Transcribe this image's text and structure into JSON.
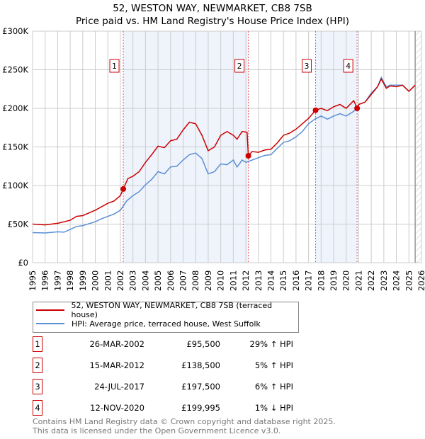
{
  "chart_data": {
    "type": "line",
    "title": "52, WESTON WAY, NEWMARKET, CB8 7SB",
    "subtitle": "Price paid vs. HM Land Registry's House Price Index (HPI)",
    "xlim": [
      1995,
      2026
    ],
    "ylim": [
      0,
      300000
    ],
    "x_ticks": [
      "1995",
      "1996",
      "1997",
      "1998",
      "1999",
      "2000",
      "2001",
      "2002",
      "2003",
      "2004",
      "2005",
      "2006",
      "2007",
      "2008",
      "2009",
      "2010",
      "2011",
      "2012",
      "2013",
      "2014",
      "2015",
      "2016",
      "2017",
      "2018",
      "2019",
      "2020",
      "2021",
      "2022",
      "2023",
      "2024",
      "2025",
      "2026"
    ],
    "y_ticks": [
      {
        "v": 0,
        "label": "£0"
      },
      {
        "v": 50000,
        "label": "£50K"
      },
      {
        "v": 100000,
        "label": "£100K"
      },
      {
        "v": 150000,
        "label": "£150K"
      },
      {
        "v": 200000,
        "label": "£200K"
      },
      {
        "v": 250000,
        "label": "£250K"
      },
      {
        "v": 300000,
        "label": "£300K"
      }
    ],
    "grid": true,
    "shaded_ranges": [
      [
        2002.23,
        2012.2
      ],
      [
        2017.56,
        2020.87
      ]
    ],
    "forecast_from": 2025.5,
    "series": [
      {
        "name": "52, WESTON WAY, NEWMARKET, CB8 7SB (terraced house)",
        "color": "#cc0000",
        "x": [
          1995,
          1996,
          1997,
          1998,
          1998.5,
          1999,
          2000,
          2001,
          2001.5,
          2002,
          2002.23,
          2002.6,
          2003,
          2003.5,
          2004,
          2004.5,
          2005,
          2005.5,
          2006,
          2006.5,
          2007,
          2007.5,
          2008,
          2008.5,
          2009,
          2009.5,
          2010,
          2010.5,
          2011,
          2011.3,
          2011.7,
          2012.1,
          2012.2,
          2012.5,
          2013,
          2013.5,
          2014,
          2014.5,
          2015,
          2015.5,
          2016,
          2016.5,
          2017,
          2017.56,
          2018,
          2018.5,
          2019,
          2019.5,
          2020,
          2020.6,
          2020.87,
          2021,
          2021.5,
          2022,
          2022.5,
          2022.8,
          2023.2,
          2023.5,
          2024,
          2024.5,
          2025,
          2025.5
        ],
        "y": [
          50,
          49,
          51,
          55,
          60,
          61,
          68,
          77,
          80,
          87,
          95.5,
          109,
          112,
          118,
          130,
          140,
          151,
          149,
          158,
          160,
          172,
          182,
          180,
          165,
          145,
          150,
          165,
          170,
          165,
          160,
          170,
          169,
          138.5,
          144,
          143,
          146,
          147,
          155,
          165,
          168,
          173,
          180,
          187,
          197.5,
          200,
          197,
          202,
          205,
          200,
          210,
          200,
          205,
          208,
          218,
          228,
          238,
          226,
          229,
          228,
          230,
          222,
          230
        ]
      },
      {
        "name": "HPI: Average price, terraced house, West Suffolk",
        "color": "#5b8fd4",
        "x": [
          1995,
          1996,
          1997,
          1997.5,
          1998,
          1998.5,
          1999,
          2000,
          2000.5,
          2001,
          2001.5,
          2002,
          2002.5,
          2003,
          2003.5,
          2004,
          2004.5,
          2005,
          2005.5,
          2006,
          2006.5,
          2007,
          2007.5,
          2008,
          2008.5,
          2009,
          2009.5,
          2010,
          2010.5,
          2011,
          2011.3,
          2011.7,
          2012,
          2012.5,
          2013,
          2013.5,
          2014,
          2014.5,
          2015,
          2015.5,
          2016,
          2016.5,
          2017,
          2017.5,
          2018,
          2018.5,
          2019,
          2019.5,
          2020,
          2020.5,
          2020.9,
          2021,
          2021.5,
          2022,
          2022.5,
          2022.8,
          2023.2,
          2023.5,
          2024,
          2024.5,
          2025,
          2025.5
        ],
        "y": [
          39,
          38.5,
          40,
          39.5,
          43,
          47,
          48,
          53,
          57,
          60,
          63,
          68,
          80,
          87,
          92,
          101,
          108,
          118,
          115,
          124,
          125,
          133,
          140,
          142,
          135,
          115,
          118,
          128,
          127,
          133,
          124,
          133,
          130,
          133,
          136,
          139,
          140,
          148,
          156,
          158,
          163,
          170,
          180,
          186,
          190,
          186,
          190,
          193,
          190,
          195,
          200,
          205,
          208,
          220,
          228,
          240,
          228,
          230,
          230,
          230,
          222,
          230
        ]
      }
    ],
    "y_units": "thousands GBP",
    "sales": [
      {
        "num": "1",
        "x": 2002.23,
        "y": 95.5,
        "date": "26-MAR-2002",
        "price": "£95,500",
        "hpi": "29% ↑ HPI"
      },
      {
        "num": "2",
        "x": 2012.2,
        "y": 138.5,
        "date": "15-MAR-2012",
        "price": "£138,500",
        "hpi": "5% ↑ HPI"
      },
      {
        "num": "3",
        "x": 2017.56,
        "y": 197.5,
        "date": "24-JUL-2017",
        "price": "£197,500",
        "hpi": "6% ↑ HPI"
      },
      {
        "num": "4",
        "x": 2020.87,
        "y": 200,
        "date": "12-NOV-2020",
        "price": "£199,995",
        "hpi": "1% ↓ HPI"
      }
    ],
    "legend": [
      "52, WESTON WAY, NEWMARKET, CB8 7SB (terraced house)",
      "HPI: Average price, terraced house, West Suffolk"
    ]
  },
  "footer": [
    "Contains HM Land Registry data © Crown copyright and database right 2025.",
    "This data is licensed under the Open Government Licence v3.0."
  ]
}
